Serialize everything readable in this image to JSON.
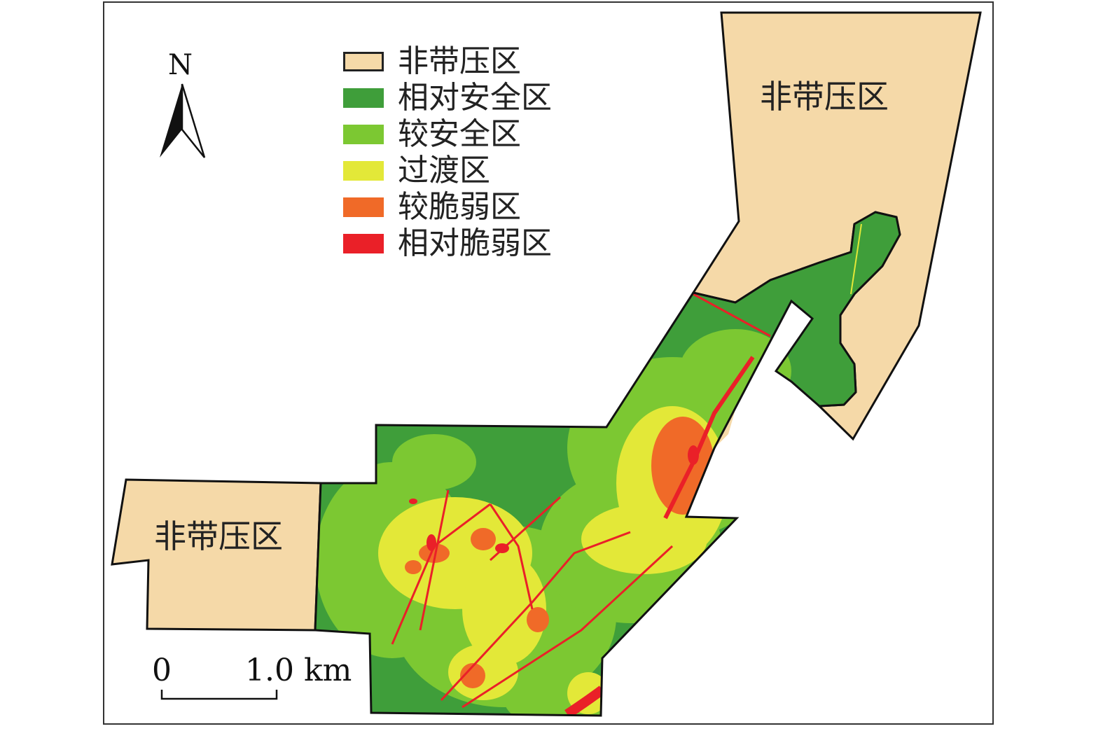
{
  "legend": [
    {
      "label": "非带压区",
      "color": "#f5d9a8"
    },
    {
      "label": "相对安全区",
      "color": "#3f9e3a"
    },
    {
      "label": "较安全区",
      "color": "#7cc832"
    },
    {
      "label": "过渡区",
      "color": "#e3e838"
    },
    {
      "label": "较脆弱区",
      "color": "#f06a28"
    },
    {
      "label": "相对脆弱区",
      "color": "#ea2028"
    }
  ],
  "map_labels": {
    "ne_zone": "非带压区",
    "w_zone": "非带压区"
  },
  "north_arrow": {
    "label": "N"
  },
  "scale_bar": {
    "start": "0",
    "end": "1.0 km"
  }
}
